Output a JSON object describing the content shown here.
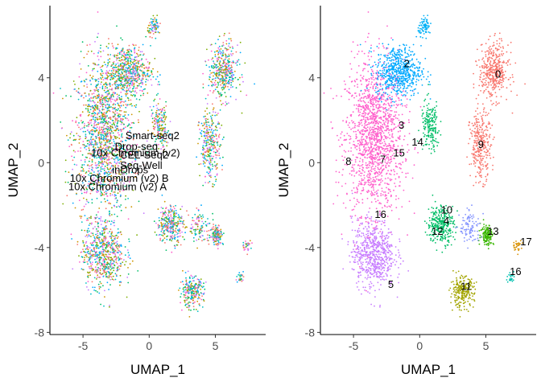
{
  "chart_data": [
    {
      "type": "scatter",
      "xlabel": "UMAP_1",
      "ylabel": "UMAP_2",
      "xlim": [
        -7.5,
        8.8
      ],
      "ylim": [
        -8.1,
        7.4
      ],
      "xticks": [
        -5,
        0,
        5
      ],
      "yticks": [
        -8,
        -4,
        0,
        4
      ],
      "grid": false,
      "legend": "none",
      "labels": [
        {
          "text": "Smart-seq2",
          "x": -1.8,
          "y": 1.1
        },
        {
          "text": "Drop-seq",
          "x": -2.6,
          "y": 0.6
        },
        {
          "text": "10x Chromium (v2)",
          "x": -4.4,
          "y": 0.3
        },
        {
          "text": "CEL-Seq2",
          "x": -2.2,
          "y": 0.2
        },
        {
          "text": "Seq-Well",
          "x": -2.2,
          "y": -0.3
        },
        {
          "text": "inDrops",
          "x": -2.8,
          "y": -0.5
        },
        {
          "text": "10x Chromium (v2) B",
          "x": -6.0,
          "y": -0.9
        },
        {
          "text": "10x Chromium (v2) A",
          "x": -6.1,
          "y": -1.3
        }
      ],
      "groups": [
        {
          "label": "Smart-seq2",
          "color": "#F8766D"
        },
        {
          "label": "Drop-seq",
          "color": "#CD9600"
        },
        {
          "label": "10x Chromium (v2)",
          "color": "#7CAE00"
        },
        {
          "label": "CEL-Seq2",
          "color": "#00BE67"
        },
        {
          "label": "Seq-Well",
          "color": "#00BFC4"
        },
        {
          "label": "inDrops",
          "color": "#00A9FF"
        },
        {
          "label": "10x Chromium (v2) B",
          "color": "#C77CFF"
        },
        {
          "label": "10x Chromium (v2) A",
          "color": "#FF61CC"
        }
      ]
    },
    {
      "type": "scatter",
      "xlabel": "UMAP_1",
      "ylabel": "UMAP_2",
      "xlim": [
        -7.5,
        8.8
      ],
      "ylim": [
        -8.1,
        7.4
      ],
      "xticks": [
        -5,
        0,
        5
      ],
      "yticks": [
        -8,
        -4,
        0,
        4
      ],
      "grid": false,
      "legend": "none",
      "labels": [
        {
          "text": "0",
          "x": 5.7,
          "y": 4.0
        },
        {
          "text": "2",
          "x": -1.2,
          "y": 4.5
        },
        {
          "text": "3",
          "x": -1.6,
          "y": 1.6
        },
        {
          "text": "14",
          "x": -0.6,
          "y": 0.8
        },
        {
          "text": "9",
          "x": 4.4,
          "y": 0.7
        },
        {
          "text": "8",
          "x": -5.6,
          "y": -0.1
        },
        {
          "text": "7",
          "x": -3.0,
          "y": 0.0
        },
        {
          "text": "15",
          "x": -2.0,
          "y": 0.3
        },
        {
          "text": "10",
          "x": 1.6,
          "y": -2.4
        },
        {
          "text": "4",
          "x": 1.8,
          "y": -2.9
        },
        {
          "text": "16",
          "x": -3.4,
          "y": -2.6
        },
        {
          "text": "12",
          "x": 0.9,
          "y": -3.4
        },
        {
          "text": "13",
          "x": 5.1,
          "y": -3.4
        },
        {
          "text": "17",
          "x": 7.6,
          "y": -3.9
        },
        {
          "text": "16",
          "x": 6.8,
          "y": -5.3
        },
        {
          "text": "5",
          "x": -2.4,
          "y": -5.9
        },
        {
          "text": "11",
          "x": 3.1,
          "y": -6.0
        }
      ],
      "groups": [
        {
          "label": "0",
          "color": "#F8766D"
        },
        {
          "label": "2",
          "color": "#00A9FF"
        },
        {
          "label": "3",
          "color": "#00BFC4"
        },
        {
          "label": "14",
          "color": "#00BE67"
        },
        {
          "label": "9",
          "color": "#F8766D"
        },
        {
          "label": "8",
          "color": "#FF61CC"
        },
        {
          "label": "7",
          "color": "#E76BF3"
        },
        {
          "label": "15",
          "color": "#FF61CC"
        },
        {
          "label": "10",
          "color": "#00BE67"
        },
        {
          "label": "4",
          "color": "#8494FF"
        },
        {
          "label": "16",
          "color": "#D89000"
        },
        {
          "label": "12",
          "color": "#A3A500"
        },
        {
          "label": "13",
          "color": "#39B600"
        },
        {
          "label": "17",
          "color": "#00B0F6"
        },
        {
          "label": "16",
          "color": "#00C0AF"
        },
        {
          "label": "5",
          "color": "#C77CFF"
        },
        {
          "label": "11",
          "color": "#B79F00"
        }
      ]
    }
  ]
}
